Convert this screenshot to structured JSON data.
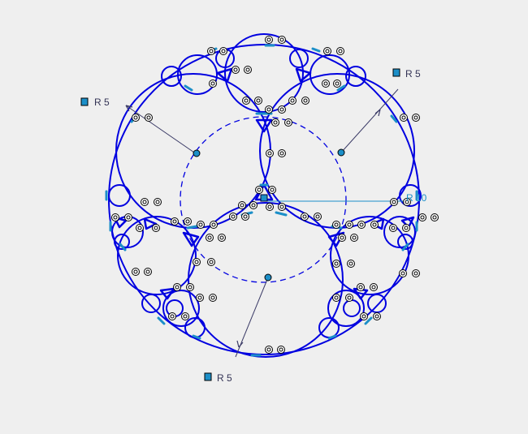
{
  "sketch": {
    "dimensions": [
      {
        "label": "R 5",
        "kind": "radius"
      },
      {
        "label": "R 5",
        "kind": "radius"
      },
      {
        "label": "R 5",
        "kind": "radius"
      },
      {
        "label": "R 10",
        "kind": "radius"
      }
    ],
    "colors": {
      "background": "#efefef",
      "geometry": "#0000e0",
      "selected": "#1c8fc8",
      "dimension_line": "#3a3a66",
      "dimension_text_blue": "#1c8fc8",
      "dimension_text_dark": "#333355",
      "constraint_marker": "#000000"
    },
    "icons": [
      "constraint-marker-icon",
      "radius-dimension-icon",
      "sketch-origin-icon"
    ]
  }
}
